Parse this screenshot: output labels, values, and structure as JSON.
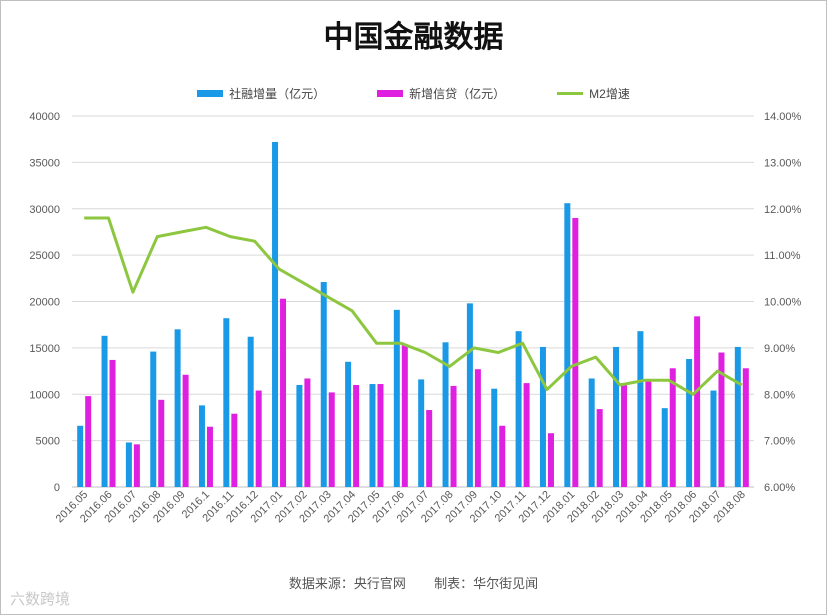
{
  "chart_data": {
    "type": "bar",
    "title": "中国金融数据",
    "categories": [
      "2016.05",
      "2016.06",
      "2016.07",
      "2016.08",
      "2016.09",
      "2016.1",
      "2016.11",
      "2016.12",
      "2017.01",
      "2017.02",
      "2017.03",
      "2017.04",
      "2017.05",
      "2017.06",
      "2017.07",
      "2017.08",
      "2017.09",
      "2017.10",
      "2017.11",
      "2017.12",
      "2018.01",
      "2018.02",
      "2018.03",
      "2018.04",
      "2018.05",
      "2018.06",
      "2018.07",
      "2018.08"
    ],
    "series": [
      {
        "name": "社融增量（亿元）",
        "type": "bar",
        "axis": "left",
        "color": "#1a9ae6",
        "values": [
          6600,
          16300,
          4800,
          14600,
          17000,
          8800,
          18200,
          16200,
          37200,
          11000,
          22100,
          13500,
          11100,
          19100,
          11600,
          15600,
          19800,
          10600,
          16800,
          15100,
          30600,
          11700,
          15100,
          16800,
          8500,
          13800,
          10400,
          15100
        ]
      },
      {
        "name": "新增信贷（亿元）",
        "type": "bar",
        "axis": "left",
        "color": "#e020e0",
        "values": [
          9800,
          13700,
          4600,
          9400,
          12100,
          6500,
          7900,
          10400,
          20300,
          11700,
          10200,
          11000,
          11100,
          15300,
          8300,
          10900,
          12700,
          6600,
          11200,
          5800,
          29000,
          8400,
          11200,
          11600,
          12800,
          18400,
          14500,
          12800
        ]
      },
      {
        "name": "M2增速",
        "type": "line",
        "axis": "right",
        "color": "#8dc63f",
        "values": [
          11.8,
          11.8,
          10.2,
          11.4,
          11.5,
          11.6,
          11.4,
          11.3,
          10.7,
          10.4,
          10.1,
          9.8,
          9.1,
          9.1,
          8.9,
          8.6,
          9.0,
          8.9,
          9.1,
          8.1,
          8.6,
          8.8,
          8.2,
          8.3,
          8.3,
          8.0,
          8.5,
          8.2
        ]
      }
    ],
    "left_axis": {
      "ylim": [
        0,
        40000
      ],
      "ticks": [
        "0",
        "5000",
        "10000",
        "15000",
        "20000",
        "25000",
        "30000",
        "35000",
        "40000"
      ]
    },
    "right_axis": {
      "ylim": [
        6.0,
        14.0
      ],
      "ticks": [
        "6.00%",
        "7.00%",
        "8.00%",
        "9.00%",
        "10.00%",
        "11.00%",
        "12.00%",
        "13.00%",
        "14.00%"
      ]
    },
    "grid": true,
    "legend_position": "top-center"
  },
  "footer": {
    "source": "数据来源：央行官网",
    "credit": "制表：华尔街见闻"
  },
  "watermark": "六数跨境",
  "colors": {
    "frame": "#bfbfbf",
    "grid": "#d9d9d9",
    "axis_text": "#595959"
  }
}
